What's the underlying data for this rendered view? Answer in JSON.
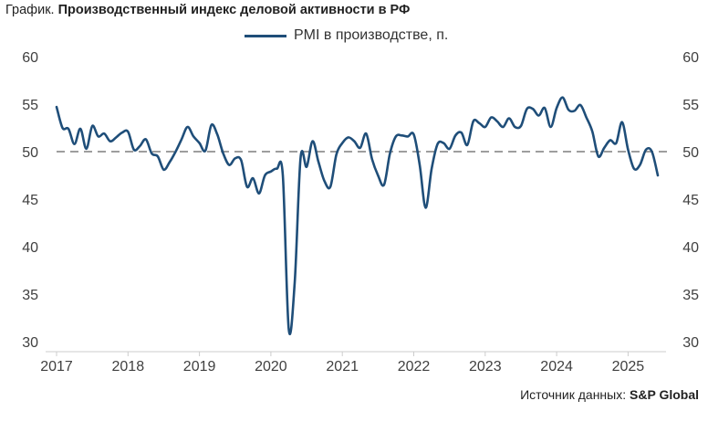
{
  "header": {
    "prefix": "График.",
    "title": "Производственный индекс деловой активности в РФ"
  },
  "legend": {
    "series_label": "PMI в производстве, п."
  },
  "source": {
    "prefix": "Источник данных:",
    "name": "S&P Global"
  },
  "colors": {
    "line": "#1f4e79",
    "reference": "#9e9e9e",
    "axis": "#cccccc"
  },
  "chart_data": {
    "type": "line",
    "title": "Производственный индекс деловой активности в РФ",
    "xlabel": "",
    "ylabel": "",
    "ylim": [
      30,
      60
    ],
    "y_ticks": [
      30,
      35,
      40,
      45,
      50,
      55,
      60
    ],
    "secondary_y_ticks": [
      30,
      35,
      40,
      45,
      50,
      55,
      60
    ],
    "x_tick_labels": [
      "2017",
      "2018",
      "2019",
      "2020",
      "2021",
      "2022",
      "2023",
      "2024",
      "2025"
    ],
    "x_start_year": 2017,
    "reference_line": 50,
    "legend_position": "top-center",
    "grid": false,
    "series": [
      {
        "name": "PMI в производстве, п.",
        "values": [
          54.7,
          52.5,
          52.4,
          50.8,
          52.4,
          50.3,
          52.7,
          51.6,
          51.9,
          51.1,
          51.5,
          52.0,
          52.1,
          50.2,
          50.6,
          51.3,
          49.8,
          49.5,
          48.1,
          48.9,
          50.0,
          51.3,
          52.6,
          51.6,
          50.9,
          50.1,
          52.8,
          51.8,
          49.8,
          48.6,
          49.3,
          49.1,
          46.3,
          47.2,
          45.6,
          47.5,
          47.9,
          48.2,
          47.5,
          31.3,
          36.2,
          49.4,
          48.4,
          51.1,
          48.9,
          46.9,
          46.3,
          49.7,
          50.9,
          51.5,
          51.1,
          50.4,
          51.9,
          49.2,
          47.5,
          46.5,
          49.8,
          51.6,
          51.7,
          51.6,
          51.8,
          48.6,
          44.1,
          48.2,
          50.8,
          50.9,
          50.3,
          51.7,
          52.0,
          50.7,
          53.2,
          53.0,
          52.6,
          53.6,
          53.2,
          52.6,
          53.5,
          52.6,
          52.7,
          54.5,
          54.5,
          53.8,
          54.6,
          52.6,
          54.6,
          55.7,
          54.4,
          54.3,
          54.9,
          53.6,
          52.1,
          49.5,
          50.4,
          51.2,
          50.9,
          53.1,
          50.2,
          48.2,
          48.6,
          50.2,
          50.0,
          47.5
        ]
      }
    ]
  }
}
